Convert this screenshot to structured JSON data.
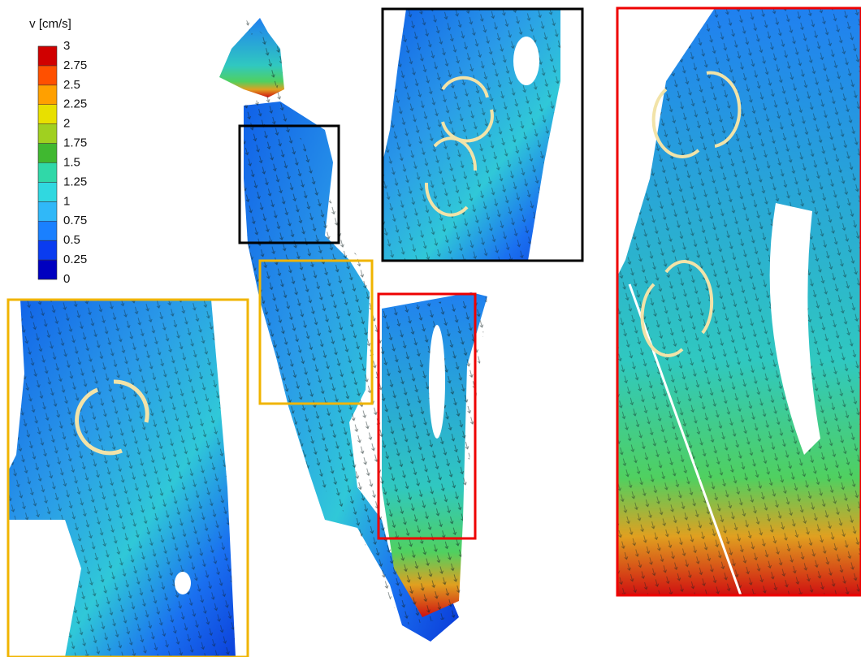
{
  "colorbar": {
    "title": "v [cm/s]",
    "ticks": [
      3,
      2.75,
      2.5,
      2.25,
      2,
      1.75,
      1.5,
      1.25,
      1,
      0.75,
      0.5,
      0.25,
      0
    ]
  }
}
